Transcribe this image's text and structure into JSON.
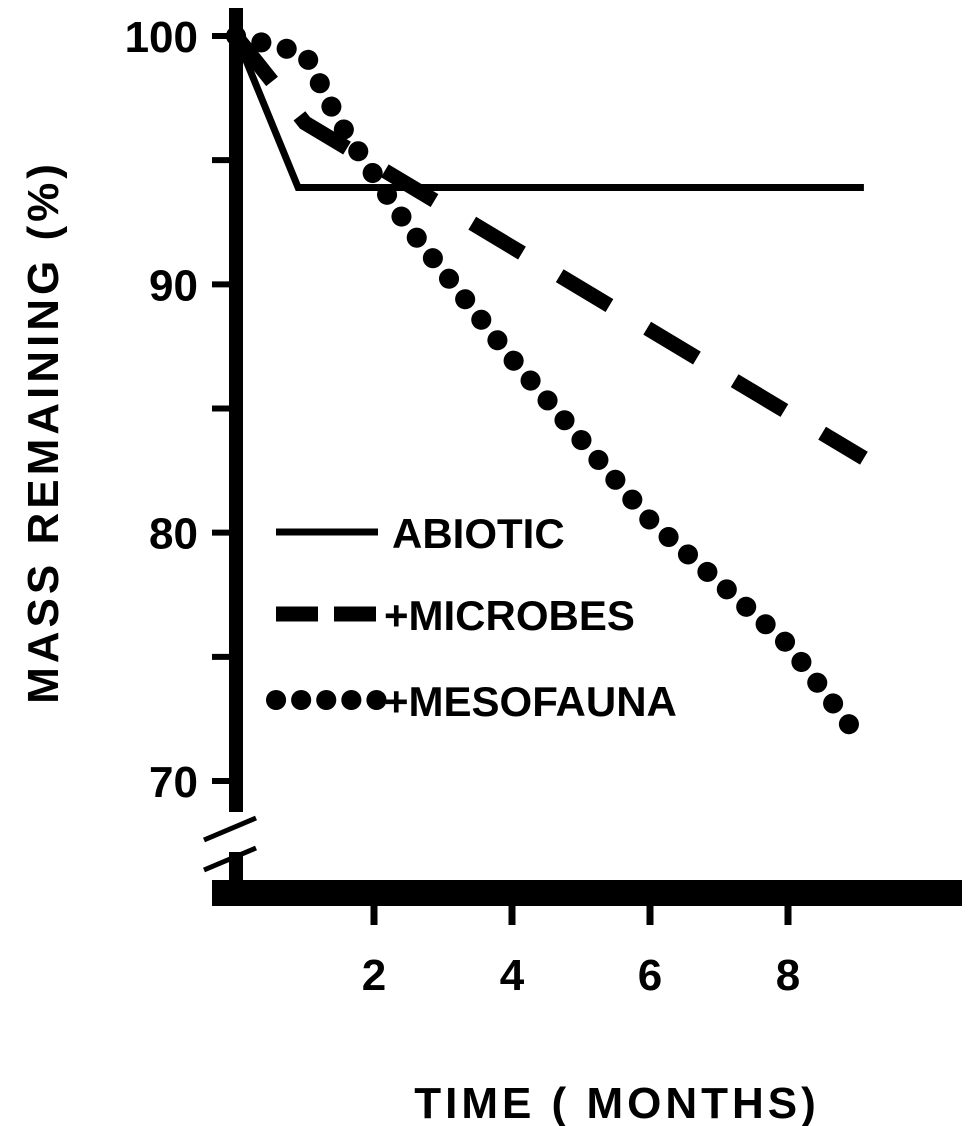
{
  "chart_data": {
    "type": "line",
    "title": "",
    "xlabel": "TIME ( MONTHS)",
    "ylabel": "MASS REMAINING (%)",
    "xlim": [
      0,
      10
    ],
    "ylim": [
      67,
      101
    ],
    "y_axis_break": true,
    "x_ticks": [
      2,
      4,
      6,
      8
    ],
    "x_tick_labels": [
      "2",
      "4",
      "6",
      "8"
    ],
    "y_ticks": [
      70,
      75,
      80,
      85,
      90,
      95,
      100
    ],
    "y_tick_labels": [
      "70",
      "",
      "80",
      "",
      "90",
      "",
      "100"
    ],
    "legend_position": "center-left",
    "series": [
      {
        "name": "ABIOTIC",
        "style": "solid",
        "color": "#000000",
        "points": [
          [
            0,
            100
          ],
          [
            0.9,
            93.9
          ],
          [
            9.1,
            93.9
          ]
        ]
      },
      {
        "name": "+MICROBES",
        "style": "dashed",
        "color": "#000000",
        "points": [
          [
            0,
            100
          ],
          [
            1.0,
            96.5
          ],
          [
            9.1,
            83.0
          ]
        ]
      },
      {
        "name": "+MESOFAUNA",
        "style": "dotted",
        "color": "#000000",
        "points": [
          [
            0,
            100
          ],
          [
            1.0,
            99.3
          ],
          [
            1.5,
            96.5
          ],
          [
            2.5,
            92.3
          ],
          [
            4,
            87.0
          ],
          [
            6,
            80.5
          ],
          [
            8,
            75.5
          ],
          [
            9.1,
            71.5
          ]
        ]
      }
    ]
  }
}
